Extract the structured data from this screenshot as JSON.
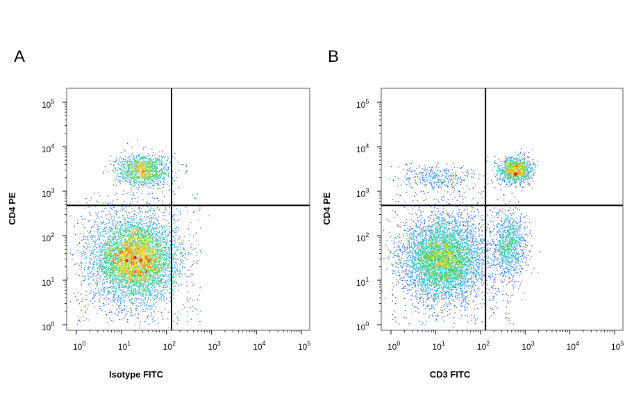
{
  "chart_data": [
    {
      "type": "scatter",
      "panel_label": "A",
      "xlabel": "Isotype FITC",
      "ylabel": "CD4 PE",
      "x_scale": "log",
      "y_scale": "log",
      "xlim": [
        1,
        100000
      ],
      "ylim": [
        1,
        100000
      ],
      "x_ticks": [
        1,
        10,
        100,
        1000,
        10000,
        100000
      ],
      "y_ticks": [
        1,
        10,
        100,
        1000,
        10000,
        100000
      ],
      "gate_x": 130,
      "gate_y": 480,
      "populations": [
        {
          "name_hint": "CD4-",
          "center_x": 20,
          "center_y": 30,
          "spread_x_decades": 0.45,
          "spread_y_decades": 0.45,
          "events": 5200
        },
        {
          "name_hint": "CD4+",
          "center_x": 30,
          "center_y": 3000,
          "spread_x_decades": 0.3,
          "spread_y_decades": 0.18,
          "events": 1200
        }
      ]
    },
    {
      "type": "scatter",
      "panel_label": "B",
      "xlabel": "CD3 FITC",
      "ylabel": "CD4 PE",
      "x_scale": "log",
      "y_scale": "log",
      "xlim": [
        1,
        100000
      ],
      "ylim": [
        1,
        100000
      ],
      "x_ticks": [
        1,
        10,
        100,
        1000,
        10000,
        100000
      ],
      "y_ticks": [
        1,
        10,
        100,
        1000,
        10000,
        100000
      ],
      "gate_x": 130,
      "gate_y": 480,
      "populations": [
        {
          "name_hint": "CD3- CD4-",
          "center_x": 15,
          "center_y": 30,
          "spread_x_decades": 0.45,
          "spread_y_decades": 0.45,
          "events": 4600
        },
        {
          "name_hint": "CD3+ CD4+",
          "center_x": 600,
          "center_y": 3000,
          "spread_x_decades": 0.18,
          "spread_y_decades": 0.15,
          "events": 1100
        },
        {
          "name_hint": "CD3+ CD4-",
          "center_x": 450,
          "center_y": 60,
          "spread_x_decades": 0.2,
          "spread_y_decades": 0.4,
          "events": 900
        },
        {
          "name_hint": "CD3- CD4+",
          "center_x": 12,
          "center_y": 2000,
          "spread_x_decades": 0.45,
          "spread_y_decades": 0.15,
          "events": 350
        }
      ]
    }
  ]
}
